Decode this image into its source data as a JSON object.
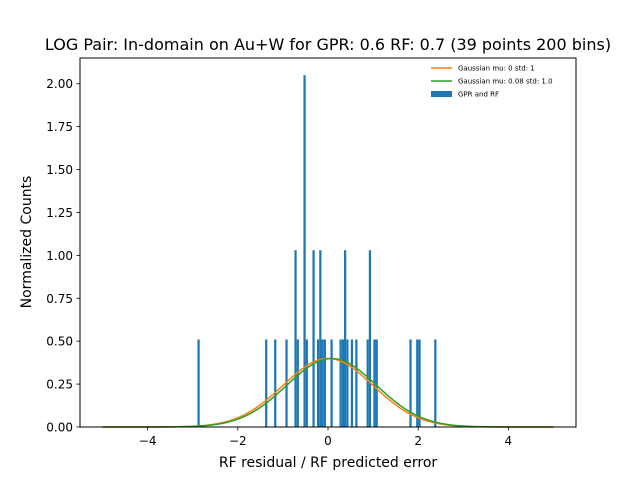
{
  "chart_data": {
    "type": "bar",
    "title": "LOG Pair: In-domain on Au+W for GPR: 0.6 RF: 0.7 (39 points 200 bins)",
    "xlabel": "RF residual / RF predicted error",
    "ylabel": "Normalized Counts",
    "xlim": [
      -5.5,
      5.5
    ],
    "ylim": [
      0,
      2.15
    ],
    "xticks": [
      -4,
      -2,
      0,
      2,
      4
    ],
    "xtick_labels": [
      "−4",
      "−2",
      "0",
      "2",
      "4"
    ],
    "yticks": [
      0,
      0.25,
      0.5,
      0.75,
      1.0,
      1.25,
      1.5,
      1.75,
      2.0
    ],
    "ytick_labels": [
      "0.00",
      "0.25",
      "0.50",
      "0.75",
      "1.00",
      "1.25",
      "1.50",
      "1.75",
      "2.00"
    ],
    "grid": false,
    "legend_position": "top-right",
    "histogram": {
      "name": "GPR and RF",
      "color": "#1f77b4",
      "bin_width": 0.05,
      "bins": [
        {
          "x": -2.87,
          "value": 0.51
        },
        {
          "x": -1.37,
          "value": 0.51
        },
        {
          "x": -1.17,
          "value": 0.51
        },
        {
          "x": -0.92,
          "value": 0.51
        },
        {
          "x": -0.72,
          "value": 1.03
        },
        {
          "x": -0.67,
          "value": 0.51
        },
        {
          "x": -0.52,
          "value": 2.05
        },
        {
          "x": -0.47,
          "value": 0.51
        },
        {
          "x": -0.32,
          "value": 1.03
        },
        {
          "x": -0.22,
          "value": 0.51
        },
        {
          "x": -0.17,
          "value": 1.03
        },
        {
          "x": -0.12,
          "value": 0.51
        },
        {
          "x": -0.07,
          "value": 0.51
        },
        {
          "x": 0.08,
          "value": 0.51
        },
        {
          "x": 0.28,
          "value": 0.51
        },
        {
          "x": 0.33,
          "value": 0.51
        },
        {
          "x": 0.38,
          "value": 1.03
        },
        {
          "x": 0.43,
          "value": 0.51
        },
        {
          "x": 0.53,
          "value": 0.51
        },
        {
          "x": 0.63,
          "value": 0.51
        },
        {
          "x": 0.88,
          "value": 0.51
        },
        {
          "x": 0.93,
          "value": 1.03
        },
        {
          "x": 1.03,
          "value": 0.51
        },
        {
          "x": 1.08,
          "value": 0.51
        },
        {
          "x": 1.83,
          "value": 0.51
        },
        {
          "x": 1.98,
          "value": 0.51
        },
        {
          "x": 2.03,
          "value": 0.51
        },
        {
          "x": 2.38,
          "value": 0.51
        }
      ]
    },
    "series": [
      {
        "name": "Gaussian mu: 0 std: 1",
        "type": "line",
        "mu": 0,
        "std": 1,
        "color": "#ff7f0e"
      },
      {
        "name": "Gaussian mu: 0.08 std: 1.0",
        "type": "line",
        "mu": 0.08,
        "std": 1.0,
        "color": "#2ca02c"
      }
    ],
    "line_x_range": [
      -5,
      5
    ]
  }
}
